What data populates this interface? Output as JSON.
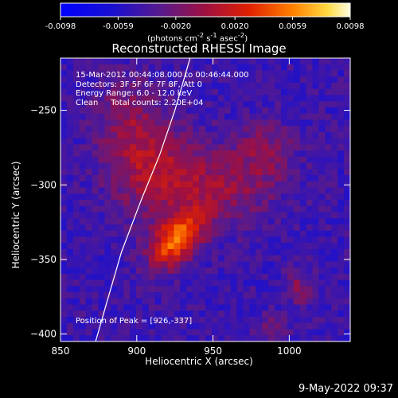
{
  "chart_data": {
    "type": "heatmap",
    "title": "Reconstructed RHESSI Image",
    "xlabel": "Heliocentric X (arcsec)",
    "ylabel": "Heliocentric Y (arcsec)",
    "xlim": [
      850,
      1040
    ],
    "ylim": [
      -405,
      -215
    ],
    "x_ticks": [
      850,
      900,
      950,
      1000
    ],
    "y_ticks": [
      -250,
      -300,
      -350,
      -400
    ],
    "colorbar": {
      "range": [
        -0.0098,
        0.0098
      ],
      "tick_values": [
        -0.0098,
        -0.0059,
        -0.002,
        0.002,
        0.0059,
        0.0098
      ],
      "tick_labels": [
        "-0.0098",
        "-0.0059",
        "-0.0020",
        "0.0020",
        "0.0059",
        "0.0098"
      ],
      "units_prefix": "(photons cm",
      "units_exp1": "-2",
      "units_mid1": " s",
      "units_exp2": "-1",
      "units_mid2": " asec",
      "units_exp3": "-2",
      "units_suffix": ")"
    },
    "sources": [
      {
        "x": 926,
        "y": -337,
        "peak": 0.0098,
        "sx": 9,
        "sy": 15,
        "rot": -40
      },
      {
        "x": 912,
        "y": -290,
        "peak": 0.005,
        "sx": 20,
        "sy": 22,
        "rot": 0
      },
      {
        "x": 960,
        "y": -300,
        "peak": 0.0038,
        "sx": 25,
        "sy": 18,
        "rot": 20
      },
      {
        "x": 893,
        "y": -255,
        "peak": 0.003,
        "sx": 14,
        "sy": 20,
        "rot": 0
      },
      {
        "x": 985,
        "y": -275,
        "peak": 0.0024,
        "sx": 12,
        "sy": 12,
        "rot": 0
      },
      {
        "x": 1007,
        "y": -370,
        "peak": 0.0035,
        "sx": 7,
        "sy": 7,
        "rot": 0
      },
      {
        "x": 990,
        "y": -395,
        "peak": 0.0022,
        "sx": 8,
        "sy": 6,
        "rot": 0
      }
    ],
    "limb_arc": [
      [
        873,
        -405
      ],
      [
        880,
        -380
      ],
      [
        890,
        -345
      ],
      [
        903,
        -310
      ],
      [
        915,
        -280
      ],
      [
        925,
        -250
      ],
      [
        935,
        -215
      ]
    ]
  },
  "info": {
    "time_range": "15-Mar-2012 00:44:08.000 to 00:46:44.000",
    "detectors": "Detectors: 3F 5F 6F 7F 8F, Att 0",
    "energy": "Energy Range: 6.0 - 12.0 keV",
    "clean": "Clean     Total counts: 2.20E+04"
  },
  "peak_label": "Position of Peak = [926,-337]",
  "footer_date": "9-May-2022 09:37"
}
